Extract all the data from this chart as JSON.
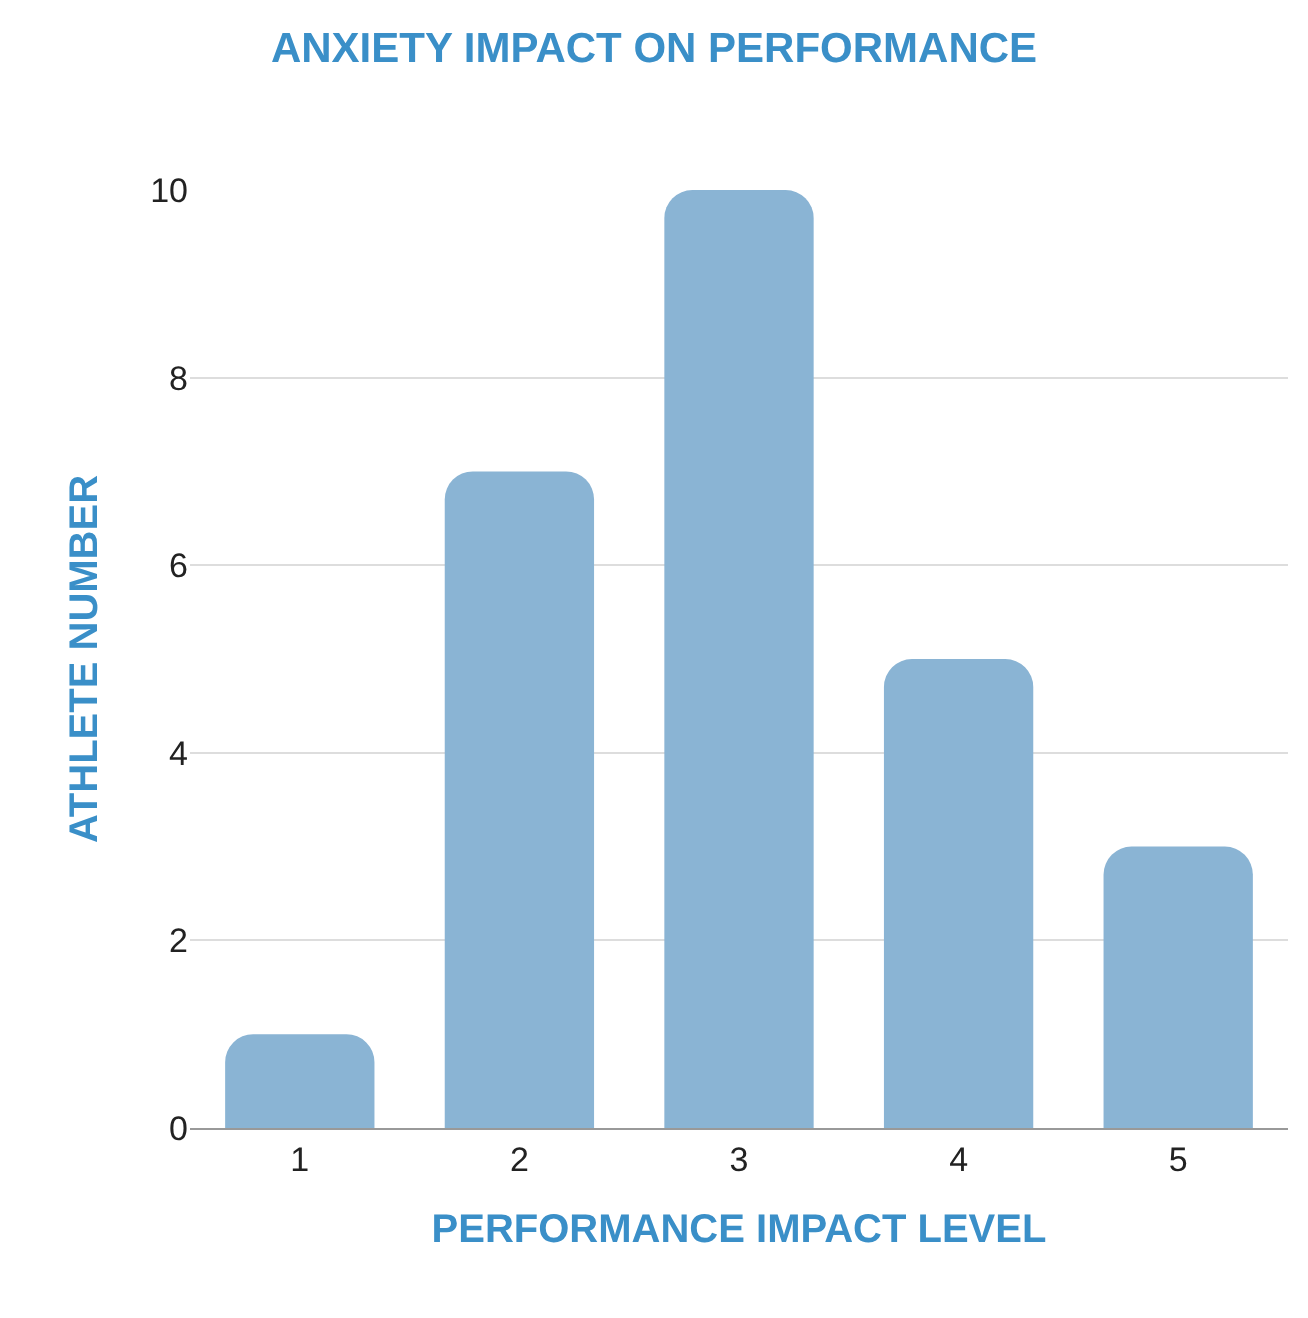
{
  "chart_data": {
    "type": "bar",
    "title": "ANXIETY IMPACT ON PERFORMANCE",
    "xlabel": "PERFORMANCE IMPACT LEVEL",
    "ylabel": "ATHLETE NUMBER",
    "categories": [
      "1",
      "2",
      "3",
      "4",
      "5"
    ],
    "values": [
      1,
      7,
      10,
      5,
      3
    ],
    "color": "#8ab4d4",
    "ylim": [
      0,
      10
    ],
    "yticks": [
      0,
      2,
      4,
      6,
      8,
      10
    ],
    "grid": "y",
    "legend": false
  }
}
